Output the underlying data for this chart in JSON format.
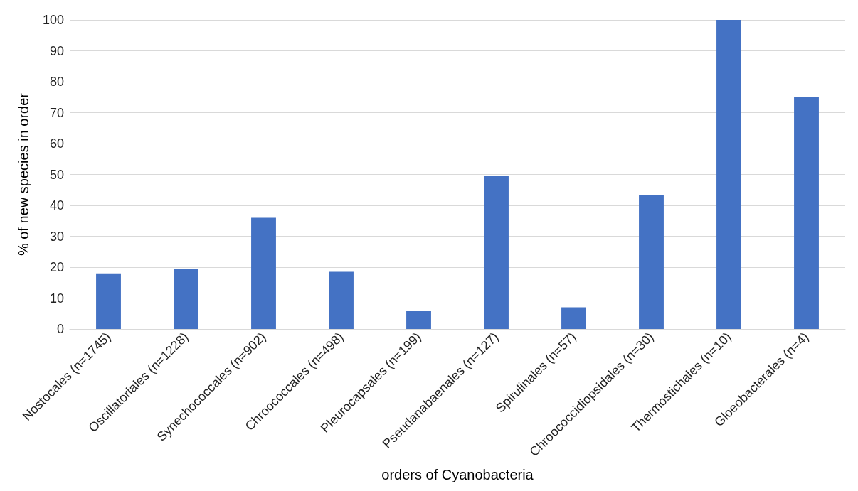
{
  "chart_data": {
    "type": "bar",
    "xlabel": "orders of Cyanobacteria",
    "ylabel": "% of new species in order",
    "categories": [
      "Nostocales (n=1745)",
      "Oscillatoriales (n=1228)",
      "Synechococcales (n=902)",
      "Chroococcales (n=498)",
      "Pleurocapsales (n=199)",
      "Pseudanabaenales (n=127)",
      "Spirulinales (n=57)",
      "Chroococcidiopsidales (n=30)",
      "Thermostichales (n=10)",
      "Gloeobacterales (n=4)"
    ],
    "values": [
      18,
      19.5,
      36,
      18.5,
      6,
      49.6,
      7,
      43.3,
      100,
      75
    ],
    "color": "#4472c4",
    "ylim": [
      0,
      100
    ],
    "yticks": [
      0,
      10,
      20,
      30,
      40,
      50,
      60,
      70,
      80,
      90,
      100
    ],
    "grid": "y"
  }
}
